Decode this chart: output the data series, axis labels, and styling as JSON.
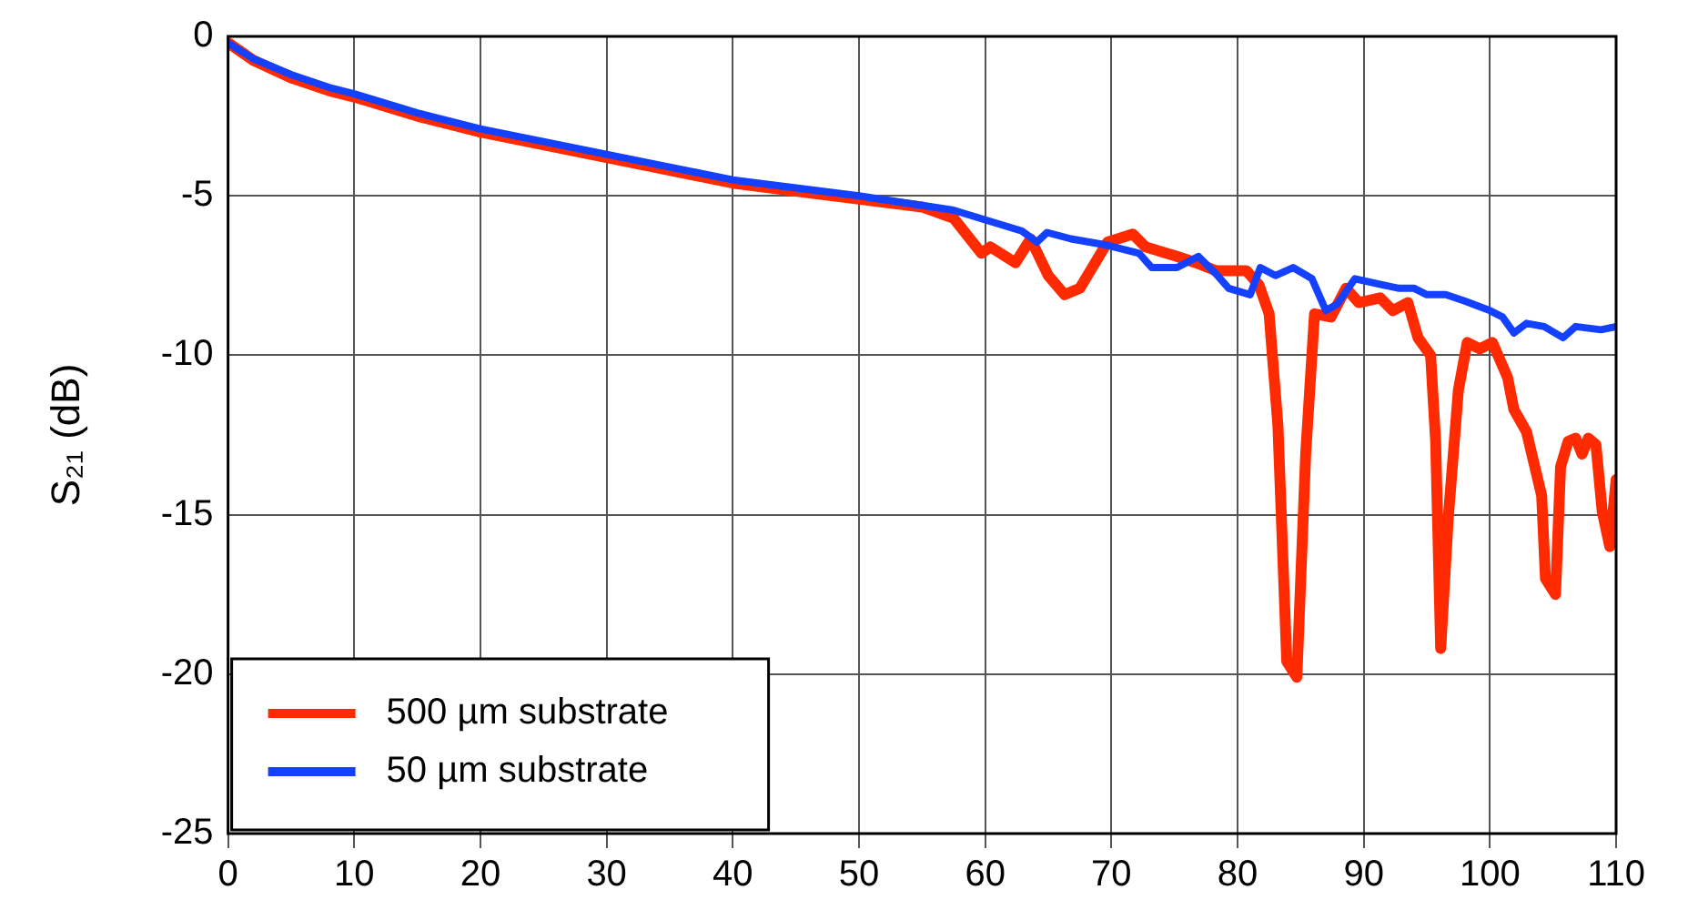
{
  "chart_data": {
    "type": "line",
    "ylabel": "S₂₁ (dB)",
    "xlim": [
      0,
      110
    ],
    "xticks": [
      0,
      10,
      20,
      30,
      40,
      50,
      60,
      70,
      80,
      90,
      100,
      110
    ],
    "ylim": [
      -25,
      0
    ],
    "yticks": [
      -25,
      -20,
      -15,
      -10,
      -5,
      0
    ],
    "grid": true,
    "legend": "bottom left",
    "line_style": "solid",
    "marker": "none",
    "series": [
      {
        "name": "500 µm substrate",
        "color": "#ff2a00",
        "x": [
          0,
          2,
          5,
          8,
          10,
          15,
          20,
          25,
          30,
          35,
          40,
          45,
          50,
          55,
          57.5,
          59.7,
          60.4,
          62.4,
          63.6,
          65,
          66.3,
          67.5,
          69.7,
          71.7,
          72.7,
          75.2,
          76.7,
          78.3,
          80.7,
          81.7,
          82.5,
          83.2,
          83.9,
          84.7,
          85.4,
          86.1,
          87.4,
          88.6,
          89.6,
          91.3,
          92.3,
          93.5,
          94.3,
          95.3,
          95.7,
          96.1,
          96.7,
          97.5,
          98.2,
          99.2,
          100.2,
          101.4,
          101.9,
          102.9,
          104.1,
          104.4,
          105.2,
          105.6,
          106.2,
          106.8,
          107.3,
          107.8,
          108.4,
          108.9,
          109.5,
          110
        ],
        "values": [
          -0.2,
          -0.75,
          -1.3,
          -1.7,
          -1.9,
          -2.5,
          -3,
          -3.4,
          -3.8,
          -4.2,
          -4.6,
          -4.85,
          -5.1,
          -5.35,
          -5.7,
          -6.8,
          -6.6,
          -7.1,
          -6.35,
          -7.5,
          -8.1,
          -7.9,
          -6.45,
          -6.2,
          -6.6,
          -6.9,
          -7.1,
          -7.35,
          -7.35,
          -7.8,
          -8.7,
          -12.2,
          -19.6,
          -20.1,
          -13.1,
          -8.7,
          -8.8,
          -7.9,
          -8.35,
          -8.2,
          -8.6,
          -8.35,
          -9.45,
          -10,
          -12.7,
          -19.2,
          -15.1,
          -11.1,
          -9.6,
          -9.8,
          -9.6,
          -10.7,
          -11.7,
          -12.4,
          -14.4,
          -17,
          -17.5,
          -13.5,
          -12.7,
          -12.6,
          -13.1,
          -12.6,
          -12.8,
          -14.9,
          -16,
          -13.9
        ]
      },
      {
        "name": "50 µm substrate",
        "color": "#1440ff",
        "x": [
          0,
          2,
          5,
          8,
          10,
          15,
          20,
          25,
          30,
          35,
          40,
          45,
          50,
          55,
          57.5,
          60.4,
          62.9,
          64.1,
          64.9,
          66.8,
          69.7,
          72.2,
          73.2,
          75.2,
          76.9,
          78.3,
          79.3,
          81,
          81.8,
          83,
          84.4,
          85.9,
          87,
          87.9,
          89.3,
          91.6,
          92.8,
          94,
          95,
          96.5,
          98,
          100,
          101,
          101.9,
          102.9,
          104.3,
          105.8,
          106.8,
          108.8,
          110
        ],
        "values": [
          -0.2,
          -0.7,
          -1.2,
          -1.6,
          -1.8,
          -2.4,
          -2.9,
          -3.3,
          -3.7,
          -4.1,
          -4.5,
          -4.75,
          -5,
          -5.3,
          -5.45,
          -5.8,
          -6.1,
          -6.45,
          -6.15,
          -6.35,
          -6.55,
          -6.8,
          -7.25,
          -7.25,
          -6.9,
          -7.45,
          -7.9,
          -8.1,
          -7.25,
          -7.5,
          -7.25,
          -7.6,
          -8.6,
          -8.4,
          -7.6,
          -7.8,
          -7.9,
          -7.9,
          -8.1,
          -8.1,
          -8.3,
          -8.6,
          -8.8,
          -9.3,
          -9,
          -9.1,
          -9.45,
          -9.1,
          -9.2,
          -9.1
        ]
      }
    ]
  }
}
